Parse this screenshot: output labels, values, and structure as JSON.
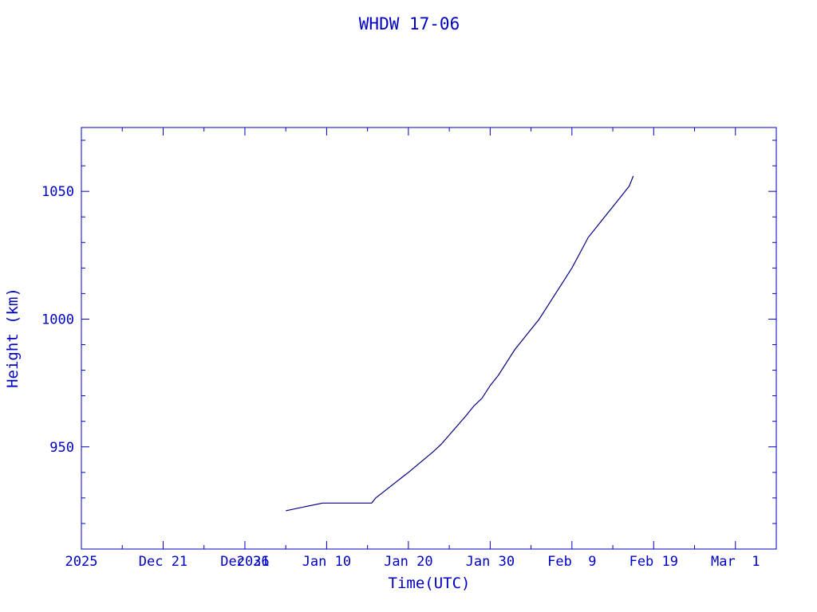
{
  "chart_data": {
    "type": "line",
    "title": "WHDW 17-06",
    "xlabel": "Time(UTC)",
    "ylabel": "Height (km)",
    "x_axis": "date",
    "xlim": [
      "2025-12-11",
      "2026-03-06"
    ],
    "ylim": [
      910,
      1075
    ],
    "x_tick_labels": [
      "2025",
      "Dec 21",
      "Dec 31",
      "2026",
      "Jan 10",
      "Jan 20",
      "Jan 30",
      "Feb  9",
      "Feb 19",
      "Mar  1"
    ],
    "x_tick_values": [
      "2025-12-11",
      "2025-12-21",
      "2025-12-31",
      "2026-01-01",
      "2026-01-10",
      "2026-01-20",
      "2026-01-30",
      "2026-02-09",
      "2026-02-19",
      "2026-03-01"
    ],
    "y_tick_values": [
      950,
      1000,
      1050
    ],
    "colors": {
      "axes": "#0000c0",
      "text": "#0000c0",
      "line": "#000080"
    },
    "series": [
      {
        "x": [
          "2026-01-05",
          "2026-01-09 12:00",
          "2026-01-15 12:00",
          "2026-01-16",
          "2026-01-18",
          "2026-01-20",
          "2026-01-23",
          "2026-01-24",
          "2026-01-27",
          "2026-01-28",
          "2026-01-29",
          "2026-01-30",
          "2026-01-31",
          "2026-02-02",
          "2026-02-03",
          "2026-02-05",
          "2026-02-06",
          "2026-02-07",
          "2026-02-08",
          "2026-02-09",
          "2026-02-10",
          "2026-02-11",
          "2026-02-12",
          "2026-02-13",
          "2026-02-14",
          "2026-02-15",
          "2026-02-16",
          "2026-02-16 12:00"
        ],
        "y": [
          925,
          928,
          928,
          930,
          935,
          940,
          948,
          951,
          962,
          966,
          969,
          974,
          978,
          988,
          992,
          1000,
          1005,
          1010,
          1015,
          1020,
          1026,
          1032,
          1036,
          1040,
          1044,
          1048,
          1052,
          1056
        ]
      }
    ]
  }
}
